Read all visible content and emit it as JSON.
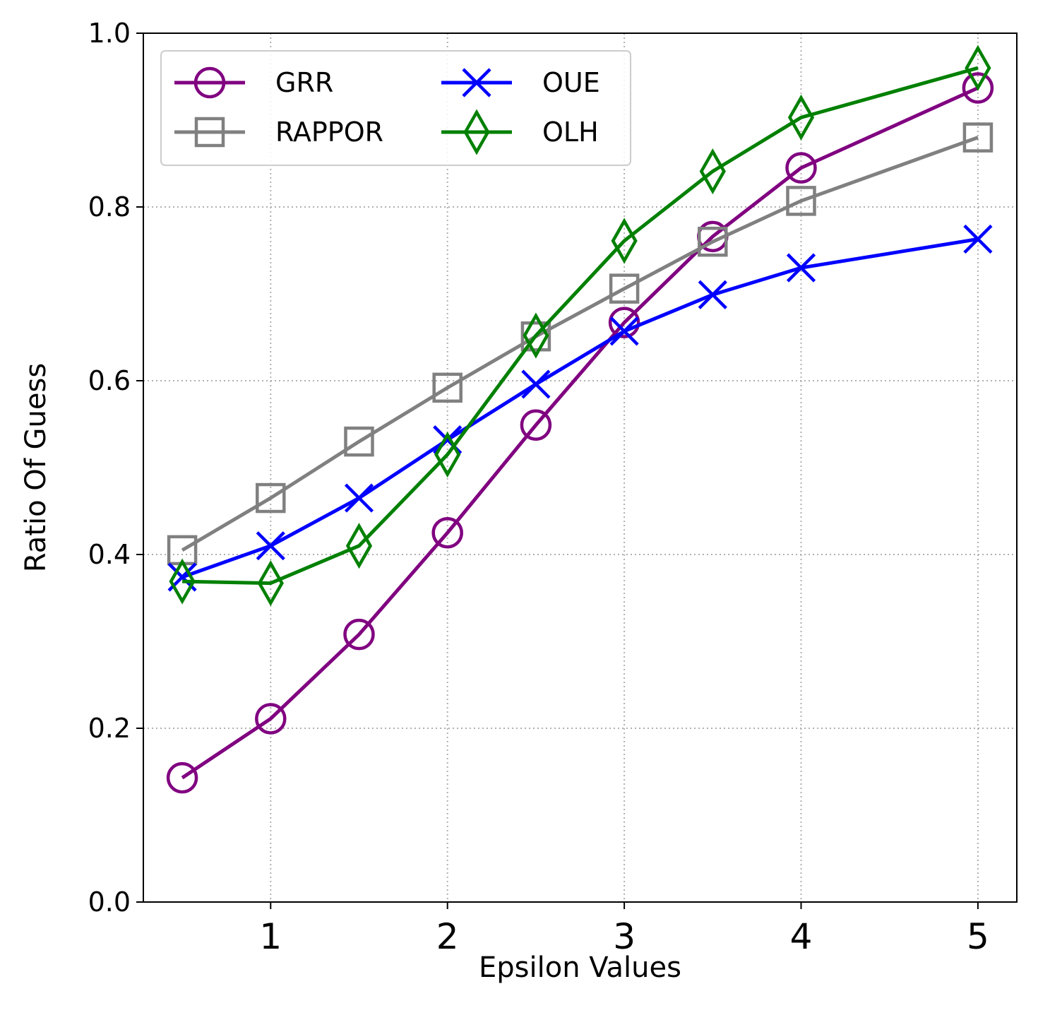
{
  "chart_data": {
    "type": "line",
    "xlabel": "Epsilon Values",
    "ylabel": "Ratio Of Guess",
    "xlim": [
      0.28,
      5.22
    ],
    "ylim": [
      0.0,
      1.0
    ],
    "x_ticks": [
      1,
      2,
      3,
      4,
      5
    ],
    "x_tick_labels": [
      "1",
      "2",
      "3",
      "4",
      "5"
    ],
    "y_ticks": [
      0.0,
      0.2,
      0.4,
      0.6,
      0.8,
      1.0
    ],
    "y_tick_labels": [
      "0.0",
      "0.2",
      "0.4",
      "0.6",
      "0.8",
      "1.0"
    ],
    "grid": true,
    "legend_position": "top-left",
    "legend_columns": 2,
    "x": [
      0.5,
      1.0,
      1.5,
      2.0,
      2.5,
      3.0,
      3.5,
      4.0,
      5.0
    ],
    "series": [
      {
        "name": "GRR",
        "color": "#800080",
        "marker": "circle",
        "values": [
          0.143,
          0.211,
          0.308,
          0.425,
          0.549,
          0.667,
          0.766,
          0.845,
          0.937
        ]
      },
      {
        "name": "RAPPOR",
        "color": "#808080",
        "marker": "square",
        "values": [
          0.405,
          0.465,
          0.53,
          0.592,
          0.651,
          0.706,
          0.76,
          0.807,
          0.88
        ]
      },
      {
        "name": "OUE",
        "color": "#0000ff",
        "marker": "x",
        "values": [
          0.374,
          0.41,
          0.465,
          0.532,
          0.596,
          0.657,
          0.699,
          0.73,
          0.763
        ]
      },
      {
        "name": "OLH",
        "color": "#008000",
        "marker": "diamond",
        "values": [
          0.369,
          0.367,
          0.41,
          0.515,
          0.652,
          0.761,
          0.841,
          0.903,
          0.96
        ]
      }
    ]
  }
}
